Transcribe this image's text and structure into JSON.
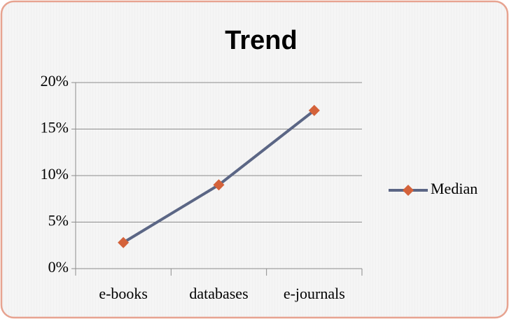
{
  "chart_data": {
    "type": "line",
    "title": "Trend",
    "categories": [
      "e-books",
      "databases",
      "e-journals"
    ],
    "series": [
      {
        "name": "Median",
        "color": "#5b6685",
        "marker_color": "#d4623a",
        "values": [
          2.8,
          9,
          17
        ]
      }
    ],
    "ylim": [
      0,
      20
    ],
    "yticks": [
      {
        "value": 0,
        "label": "0%"
      },
      {
        "value": 5,
        "label": "5%"
      },
      {
        "value": 10,
        "label": "10%"
      },
      {
        "value": 15,
        "label": "15%"
      },
      {
        "value": 20,
        "label": "20%"
      }
    ],
    "grid": true,
    "legend": "right"
  }
}
